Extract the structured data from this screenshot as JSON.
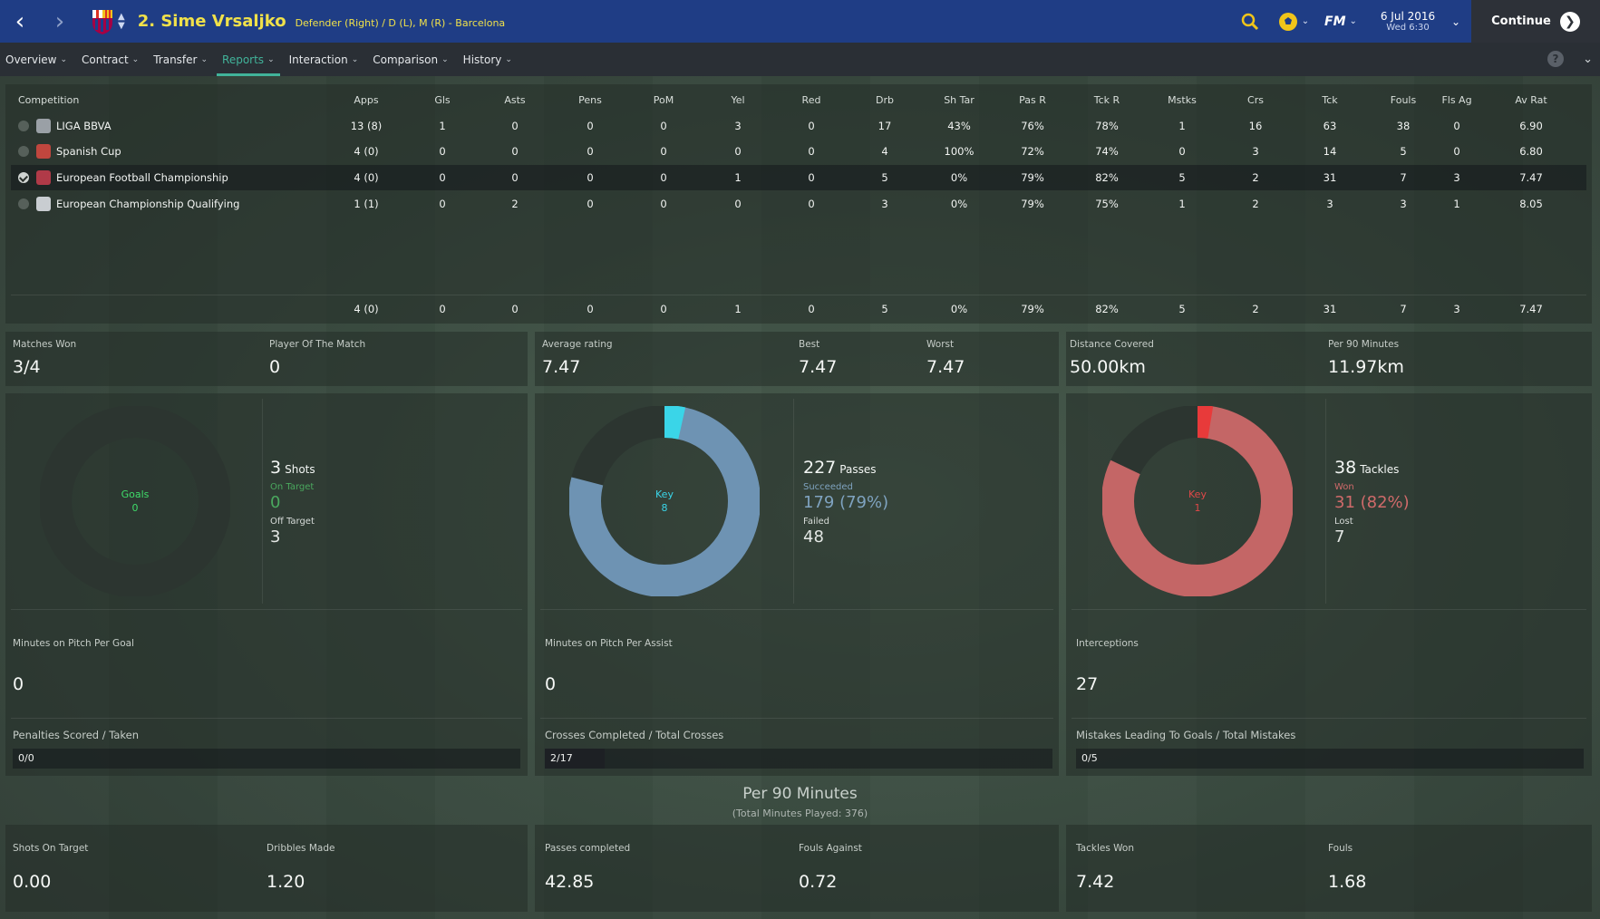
{
  "header": {
    "player_title": "2. Sime Vrsaljko",
    "player_subtitle": "Defender (Right) / D (L), M (R) - Barcelona",
    "date": "6 Jul 2016",
    "time": "Wed 6:30",
    "continue_label": "Continue",
    "fm_label": "FM"
  },
  "tabs": [
    {
      "label": "Overview"
    },
    {
      "label": "Contract"
    },
    {
      "label": "Transfer"
    },
    {
      "label": "Reports",
      "active": true
    },
    {
      "label": "Interaction"
    },
    {
      "label": "Comparison"
    },
    {
      "label": "History"
    }
  ],
  "help_label": "?",
  "stats_table": {
    "columns": [
      "Competition",
      "Apps",
      "Gls",
      "Asts",
      "Pens",
      "PoM",
      "Yel",
      "Red",
      "Drb",
      "Sh Tar",
      "Pas R",
      "Tck R",
      "Mstks",
      "Crs",
      "Tck",
      "Fouls",
      "Fls Ag",
      "Av Rat"
    ],
    "rows": [
      {
        "name": "LIGA BBVA",
        "icon_color": "#9aa0a6",
        "checked": false,
        "selected": false,
        "values": [
          "13 (8)",
          "1",
          "0",
          "0",
          "0",
          "3",
          "0",
          "17",
          "43%",
          "76%",
          "78%",
          "1",
          "16",
          "63",
          "38",
          "0",
          "6.90"
        ]
      },
      {
        "name": "Spanish Cup",
        "icon_color": "#c0463e",
        "checked": false,
        "selected": false,
        "values": [
          "4 (0)",
          "0",
          "0",
          "0",
          "0",
          "0",
          "0",
          "4",
          "100%",
          "72%",
          "74%",
          "0",
          "3",
          "14",
          "5",
          "0",
          "6.80"
        ]
      },
      {
        "name": "European Football Championship",
        "icon_color": "#b03a48",
        "checked": true,
        "selected": true,
        "values": [
          "4 (0)",
          "0",
          "0",
          "0",
          "0",
          "1",
          "0",
          "5",
          "0%",
          "79%",
          "82%",
          "5",
          "2",
          "31",
          "7",
          "3",
          "7.47"
        ]
      },
      {
        "name": "European Championship Qualifying",
        "icon_color": "#c9cdd1",
        "checked": false,
        "selected": false,
        "values": [
          "1 (1)",
          "0",
          "2",
          "0",
          "0",
          "0",
          "0",
          "3",
          "0%",
          "79%",
          "75%",
          "1",
          "2",
          "3",
          "3",
          "1",
          "8.05"
        ]
      }
    ],
    "totals": [
      "4 (0)",
      "0",
      "0",
      "0",
      "0",
      "1",
      "0",
      "5",
      "0%",
      "79%",
      "82%",
      "5",
      "2",
      "31",
      "7",
      "3",
      "7.47"
    ]
  },
  "summary": {
    "matches_won": {
      "label": "Matches Won",
      "value": "3/4"
    },
    "pom": {
      "label": "Player Of The Match",
      "value": "0"
    },
    "avg_rating": {
      "label": "Average rating",
      "value": "7.47"
    },
    "best": {
      "label": "Best",
      "value": "7.47"
    },
    "worst": {
      "label": "Worst",
      "value": "7.47"
    },
    "distance": {
      "label": "Distance Covered",
      "value": "50.00km"
    },
    "per90dist": {
      "label": "Per 90 Minutes",
      "value": "11.97km"
    }
  },
  "shots_panel": {
    "center_label": "Goals",
    "center_value": "0",
    "center_color": "#3fdc6a",
    "big_value": "3",
    "big_label": "Shots",
    "sub1_label": "On Target",
    "sub1_value": "0",
    "sub1_color": "#4aa85e",
    "sub2_label": "Off Target",
    "sub2_value": "3",
    "ring_fraction": 0.0,
    "metric_label": "Minutes on Pitch Per Goal",
    "metric_value": "0",
    "bar_label": "Penalties Scored / Taken",
    "bar_value": "0/0",
    "bar_fraction": 0
  },
  "passes_panel": {
    "center_label": "Key",
    "center_value": "8",
    "center_color": "#3ad5e8",
    "big_value": "227",
    "big_label": "Passes",
    "sub1_label": "Succeeded",
    "sub1_value": "179 (79%)",
    "sub1_color": "#7fa3c0",
    "sub2_label": "Failed",
    "sub2_value": "48",
    "ring_fraction": 0.79,
    "key_fraction": 0.035,
    "ring_color": "#6e93b3",
    "key_color": "#3ad5e8",
    "metric_label": "Minutes on Pitch Per Assist",
    "metric_value": "0",
    "bar_label": "Crosses Completed / Total Crosses",
    "bar_value": "2/17",
    "bar_fraction": 0.1176
  },
  "tackles_panel": {
    "center_label": "Key",
    "center_value": "1",
    "center_color": "#e04848",
    "big_value": "38",
    "big_label": "Tackles",
    "sub1_label": "Won",
    "sub1_value": "31 (82%)",
    "sub1_color": "#cf6a6a",
    "sub2_label": "Lost",
    "sub2_value": "7",
    "ring_fraction": 0.82,
    "key_fraction": 0.026,
    "ring_color": "#c46666",
    "key_color": "#e83a3a",
    "metric_label": "Interceptions",
    "metric_value": "27",
    "bar_label": "Mistakes Leading To Goals / Total Mistakes",
    "bar_value": "0/5",
    "bar_fraction": 0
  },
  "per90": {
    "title": "Per 90 Minutes",
    "subtitle": "(Total Minutes Played: 376)",
    "items": [
      {
        "label": "Shots On Target",
        "value": "0.00"
      },
      {
        "label": "Dribbles Made",
        "value": "1.20"
      },
      {
        "label": "Passes completed",
        "value": "42.85"
      },
      {
        "label": "Fouls Against",
        "value": "0.72"
      },
      {
        "label": "Tackles Won",
        "value": "7.42"
      },
      {
        "label": "Fouls",
        "value": "1.68"
      }
    ]
  }
}
